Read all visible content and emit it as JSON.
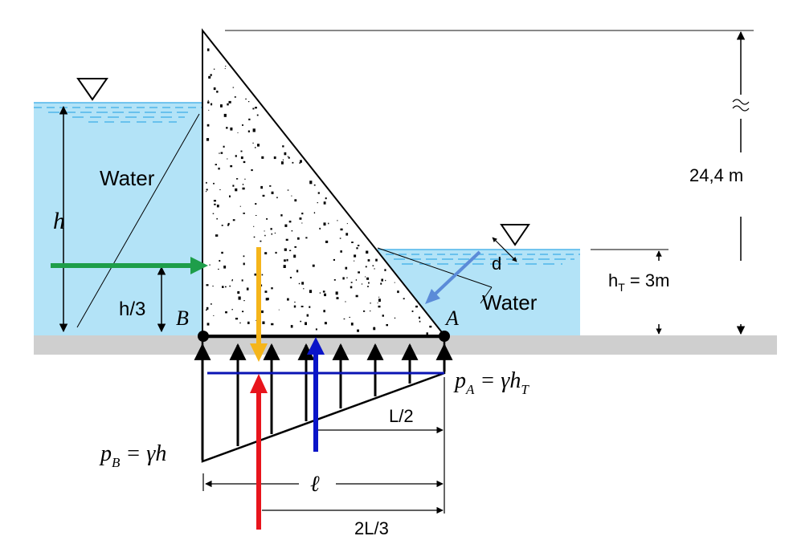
{
  "labels": {
    "water_left": "Water",
    "water_right": "Water",
    "h": "h",
    "h_third": "h/3",
    "point_b": "B",
    "point_a": "A",
    "height_total": "24,4 m",
    "tail_height_main": "h",
    "tail_height_sub": "T",
    "tail_height_value": " = 3m",
    "distance_d": "d",
    "pressure_a_main": "p",
    "pressure_a_sub_1": "A",
    "pressure_a_eq": " = γh",
    "pressure_a_sub_2": "T",
    "pressure_b_main": "p",
    "pressure_b_sub": "B",
    "pressure_b_eq": " = γh",
    "half_length": "L/2",
    "length_l": "ℓ",
    "two_thirds_length": "2L/3"
  },
  "colors": {
    "water": "#b3e3f7",
    "water_lines": "#4fb6ea",
    "ground": "#cfcfcf",
    "dam_fill": "#ffffff",
    "force_hydrostatic": "#1e9e4a",
    "force_weight": "#f5b51b",
    "force_uplift": "#e8141c",
    "force_uplift_resultant": "#0a14c8",
    "force_tailwater": "#5b8bd8",
    "blue_bar": "#0a14b4"
  }
}
